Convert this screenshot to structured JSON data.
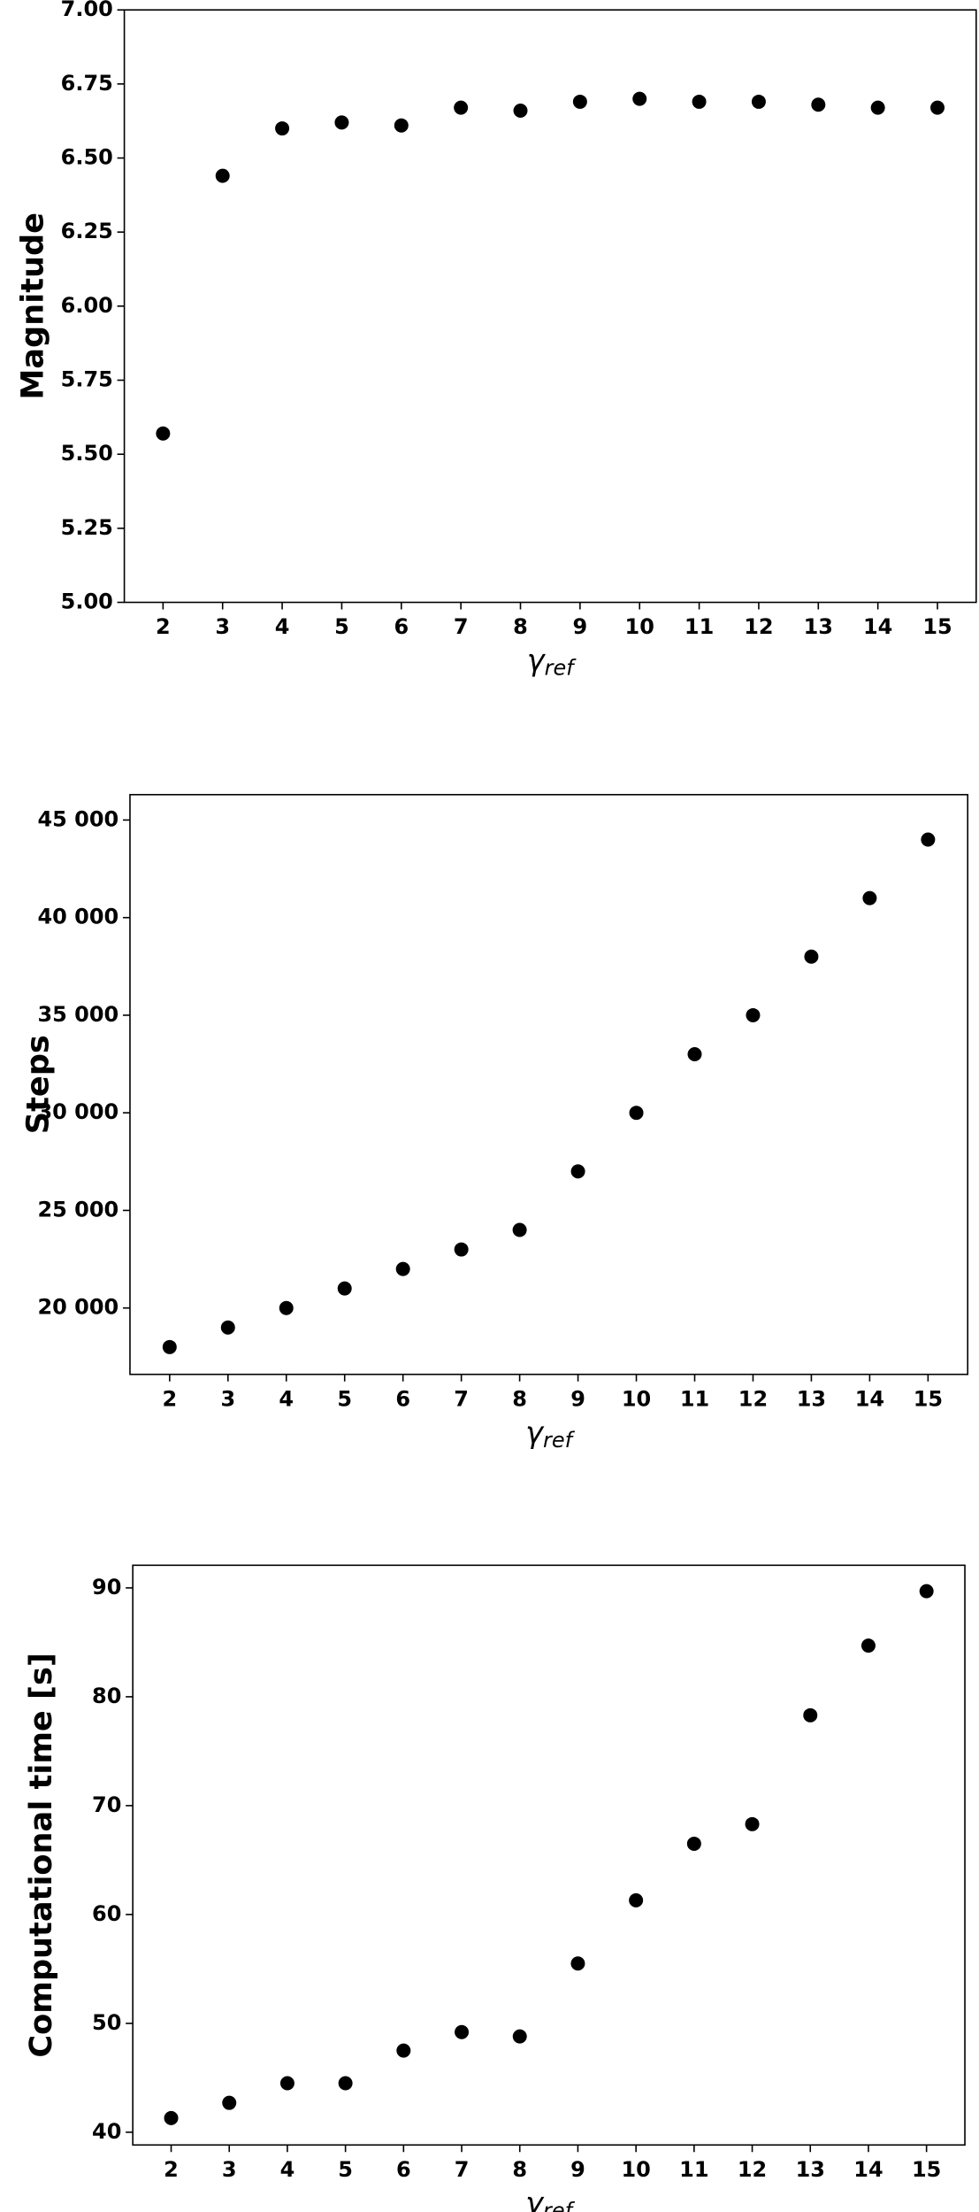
{
  "chart_data": [
    {
      "type": "scatter",
      "y_label": "Magnitude",
      "x_label": {
        "symbol": "γ",
        "subscript": "ref"
      },
      "color": "#000000",
      "x": [
        2,
        3,
        4,
        5,
        6,
        7,
        8,
        9,
        10,
        11,
        12,
        13,
        14,
        15
      ],
      "values": [
        5.57,
        6.44,
        6.6,
        6.62,
        6.61,
        6.67,
        6.66,
        6.69,
        6.7,
        6.69,
        6.69,
        6.68,
        6.67,
        6.67
      ],
      "xlim": [
        1.35,
        15.65
      ],
      "xticks": [
        2,
        3,
        4,
        5,
        6,
        7,
        8,
        9,
        10,
        11,
        12,
        13,
        14,
        15
      ],
      "ylim": [
        5,
        7
      ],
      "yticks": [
        {
          "value": 5,
          "label": "5.00"
        },
        {
          "value": 5.25,
          "label": "5.25"
        },
        {
          "value": 5.5,
          "label": "5.50"
        },
        {
          "value": 5.75,
          "label": "5.75"
        },
        {
          "value": 6,
          "label": "6.00"
        },
        {
          "value": 6.25,
          "label": "6.25"
        },
        {
          "value": 6.5,
          "label": "6.50"
        },
        {
          "value": 6.75,
          "label": "6.75"
        },
        {
          "value": 7,
          "label": "7.00"
        }
      ]
    },
    {
      "type": "scatter",
      "y_label": "Steps",
      "x_label": {
        "symbol": "γ",
        "subscript": "ref"
      },
      "color": "#000000",
      "x": [
        2,
        3,
        4,
        5,
        6,
        7,
        8,
        9,
        10,
        11,
        12,
        13,
        14,
        15
      ],
      "values": [
        18000,
        19000,
        20000,
        21000,
        22000,
        23000,
        24000,
        27000,
        30000,
        33000,
        35000,
        38000,
        41000,
        44000
      ],
      "xlim": [
        1.32,
        15.68
      ],
      "xticks": [
        2,
        3,
        4,
        5,
        6,
        7,
        8,
        9,
        10,
        11,
        12,
        13,
        14,
        15
      ],
      "ylim": [
        16600,
        46300
      ],
      "yticks": [
        {
          "value": 20000,
          "label": "20 000"
        },
        {
          "value": 25000,
          "label": "25 000"
        },
        {
          "value": 30000,
          "label": "30 000"
        },
        {
          "value": 35000,
          "label": "35 000"
        },
        {
          "value": 40000,
          "label": "40 000"
        },
        {
          "value": 45000,
          "label": "45 000"
        }
      ]
    },
    {
      "type": "scatter",
      "y_label": "Computational time [s]",
      "x_label": {
        "symbol": "γ",
        "subscript": "ref"
      },
      "color": "#000000",
      "x": [
        2,
        3,
        4,
        5,
        6,
        7,
        8,
        9,
        10,
        11,
        12,
        13,
        14,
        15
      ],
      "values": [
        41.3,
        42.7,
        44.5,
        44.5,
        47.5,
        49.2,
        48.8,
        55.5,
        61.3,
        66.5,
        68.3,
        78.3,
        84.7,
        89.7
      ],
      "xlim": [
        1.34,
        15.66
      ],
      "xticks": [
        2,
        3,
        4,
        5,
        6,
        7,
        8,
        9,
        10,
        11,
        12,
        13,
        14,
        15
      ],
      "ylim": [
        38.83,
        92.08
      ],
      "yticks": [
        40,
        50,
        60,
        70,
        80,
        90
      ]
    }
  ]
}
